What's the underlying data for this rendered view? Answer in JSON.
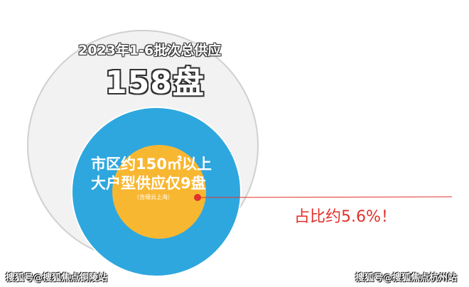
{
  "headline": {
    "title": "2023年1-6批次总供应",
    "total": "158盘"
  },
  "inner": {
    "line1": "市区约150㎡以上",
    "line2": "大户型供应仅9盘",
    "note": "（含缦云上海）"
  },
  "callout": "占比约5.6%！",
  "watermarks": {
    "left": "搜狐号@搜狐焦点铜陵站",
    "right": "搜狐号@搜狐焦点杭州站"
  },
  "colors": {
    "outer": "#f2f2f2",
    "blue": "#2ea7df",
    "orange": "#f8b731",
    "accent": "#e0312a"
  }
}
